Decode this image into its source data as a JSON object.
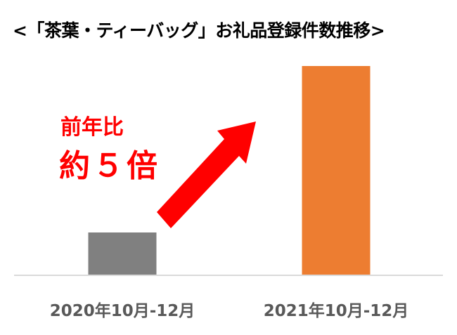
{
  "chart_data": {
    "type": "bar",
    "title": "<「茶葉・ティーバッグ」お礼品登録件数推移>",
    "categories": [
      "2020年10月-12月",
      "2021年10月-12月"
    ],
    "values": [
      1,
      4.95
    ],
    "colors": [
      "#808080",
      "#ED7D31"
    ],
    "ylim": [
      0,
      5
    ],
    "grid": false,
    "annotation": {
      "line1": "前年比",
      "line2": "約５倍",
      "arrow_color": "#FF0000"
    }
  }
}
